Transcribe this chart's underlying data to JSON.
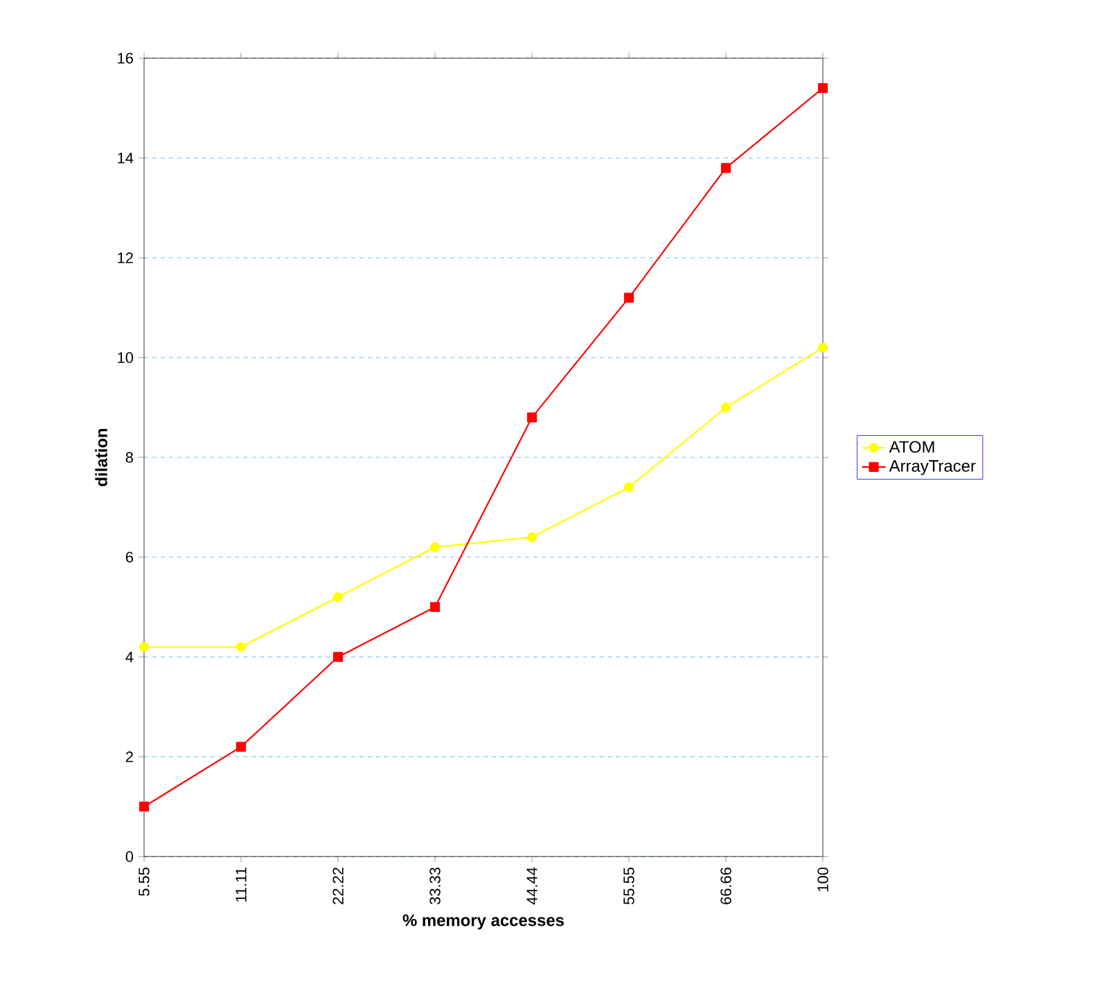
{
  "chart_data": {
    "type": "line",
    "xlabel": "% memory accesses",
    "ylabel": "dilation",
    "categories": [
      "5.55",
      "11.11",
      "22.22",
      "33.33",
      "44.44",
      "55.55",
      "66.66",
      "100"
    ],
    "series": [
      {
        "name": "ATOM",
        "color": "#ffff00",
        "marker": "circle",
        "values": [
          4.2,
          4.2,
          5.2,
          6.2,
          6.4,
          7.4,
          9.0,
          10.2
        ]
      },
      {
        "name": "ArrayTracer",
        "color": "#ff0000",
        "marker": "square",
        "values": [
          1.0,
          2.2,
          4.0,
          5.0,
          8.8,
          11.2,
          13.8,
          15.4
        ]
      }
    ],
    "ylim": [
      0,
      16
    ],
    "yticks": [
      0,
      2,
      4,
      6,
      8,
      10,
      12,
      14,
      16
    ],
    "grid": "y",
    "legend": "right",
    "line_style": "solid"
  }
}
